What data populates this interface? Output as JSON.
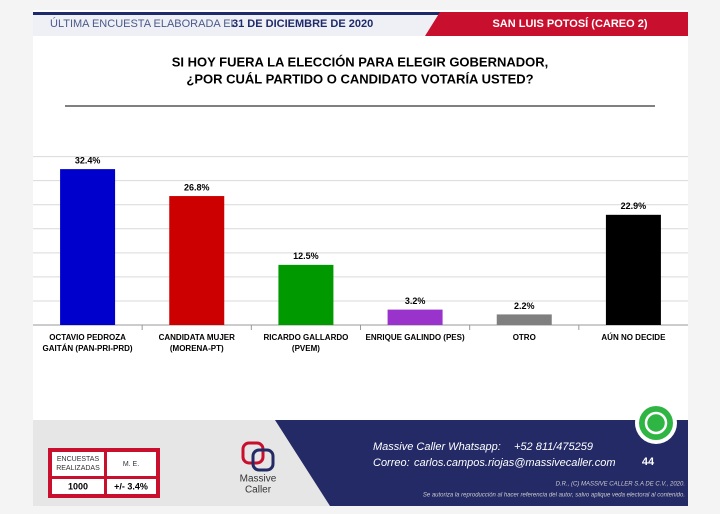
{
  "header": {
    "label": "ÚLTIMA ENCUESTA ELABORADA EL",
    "date": "31 DE DICIEMBRE DE 2020",
    "region": "SAN LUIS POTOSÍ (CAREO 2)"
  },
  "chart_data": {
    "type": "bar",
    "title": [
      "SI HOY FUERA LA ELECCIÓN PARA ELEGIR GOBERNADOR,",
      "¿POR CUÁL PARTIDO O CANDIDATO VOTARÍA USTED?"
    ],
    "categories": [
      [
        "OCTAVIO PEDROZA",
        "GAITÁN (PAN-PRI-PRD)"
      ],
      [
        "CANDIDATA MUJER",
        "(MORENA-PT)"
      ],
      [
        "RICARDO GALLARDO",
        "(PVEM)"
      ],
      [
        "ENRIQUE GALINDO (PES)"
      ],
      [
        "OTRO"
      ],
      [
        "AÚN NO DECIDE"
      ]
    ],
    "values": [
      32.4,
      26.8,
      12.5,
      3.2,
      2.2,
      22.9
    ],
    "value_labels": [
      "32.4%",
      "26.8%",
      "12.5%",
      "3.2%",
      "2.2%",
      "22.9%"
    ],
    "colors": [
      "#0000cc",
      "#cc0000",
      "#009900",
      "#9933cc",
      "#7f7f7f",
      "#000000"
    ],
    "ylim": [
      0,
      35
    ],
    "yticks": [
      0,
      5,
      10,
      15,
      20,
      25,
      30,
      35
    ],
    "grid": true
  },
  "footer": {
    "table": {
      "headers": [
        "ENCUESTAS REALIZADAS",
        "M. E."
      ],
      "values": [
        "1000",
        "+/- 3.4%"
      ]
    },
    "logo": [
      "Massive",
      "Caller"
    ],
    "whatsapp_label": "Massive Caller Whatsapp:",
    "whatsapp": "+52 811/475259",
    "email_label": "Correo:",
    "email": "carlos.campos.riojas@massivecaller.com",
    "page": "44",
    "copyright": "D.R., (C) MASSIVE CALLER S.A DE C.V., 2020.",
    "notice": "Se autoriza la reproducción al hacer referencia del autor, salvo aplique veda electoral al contenido."
  }
}
